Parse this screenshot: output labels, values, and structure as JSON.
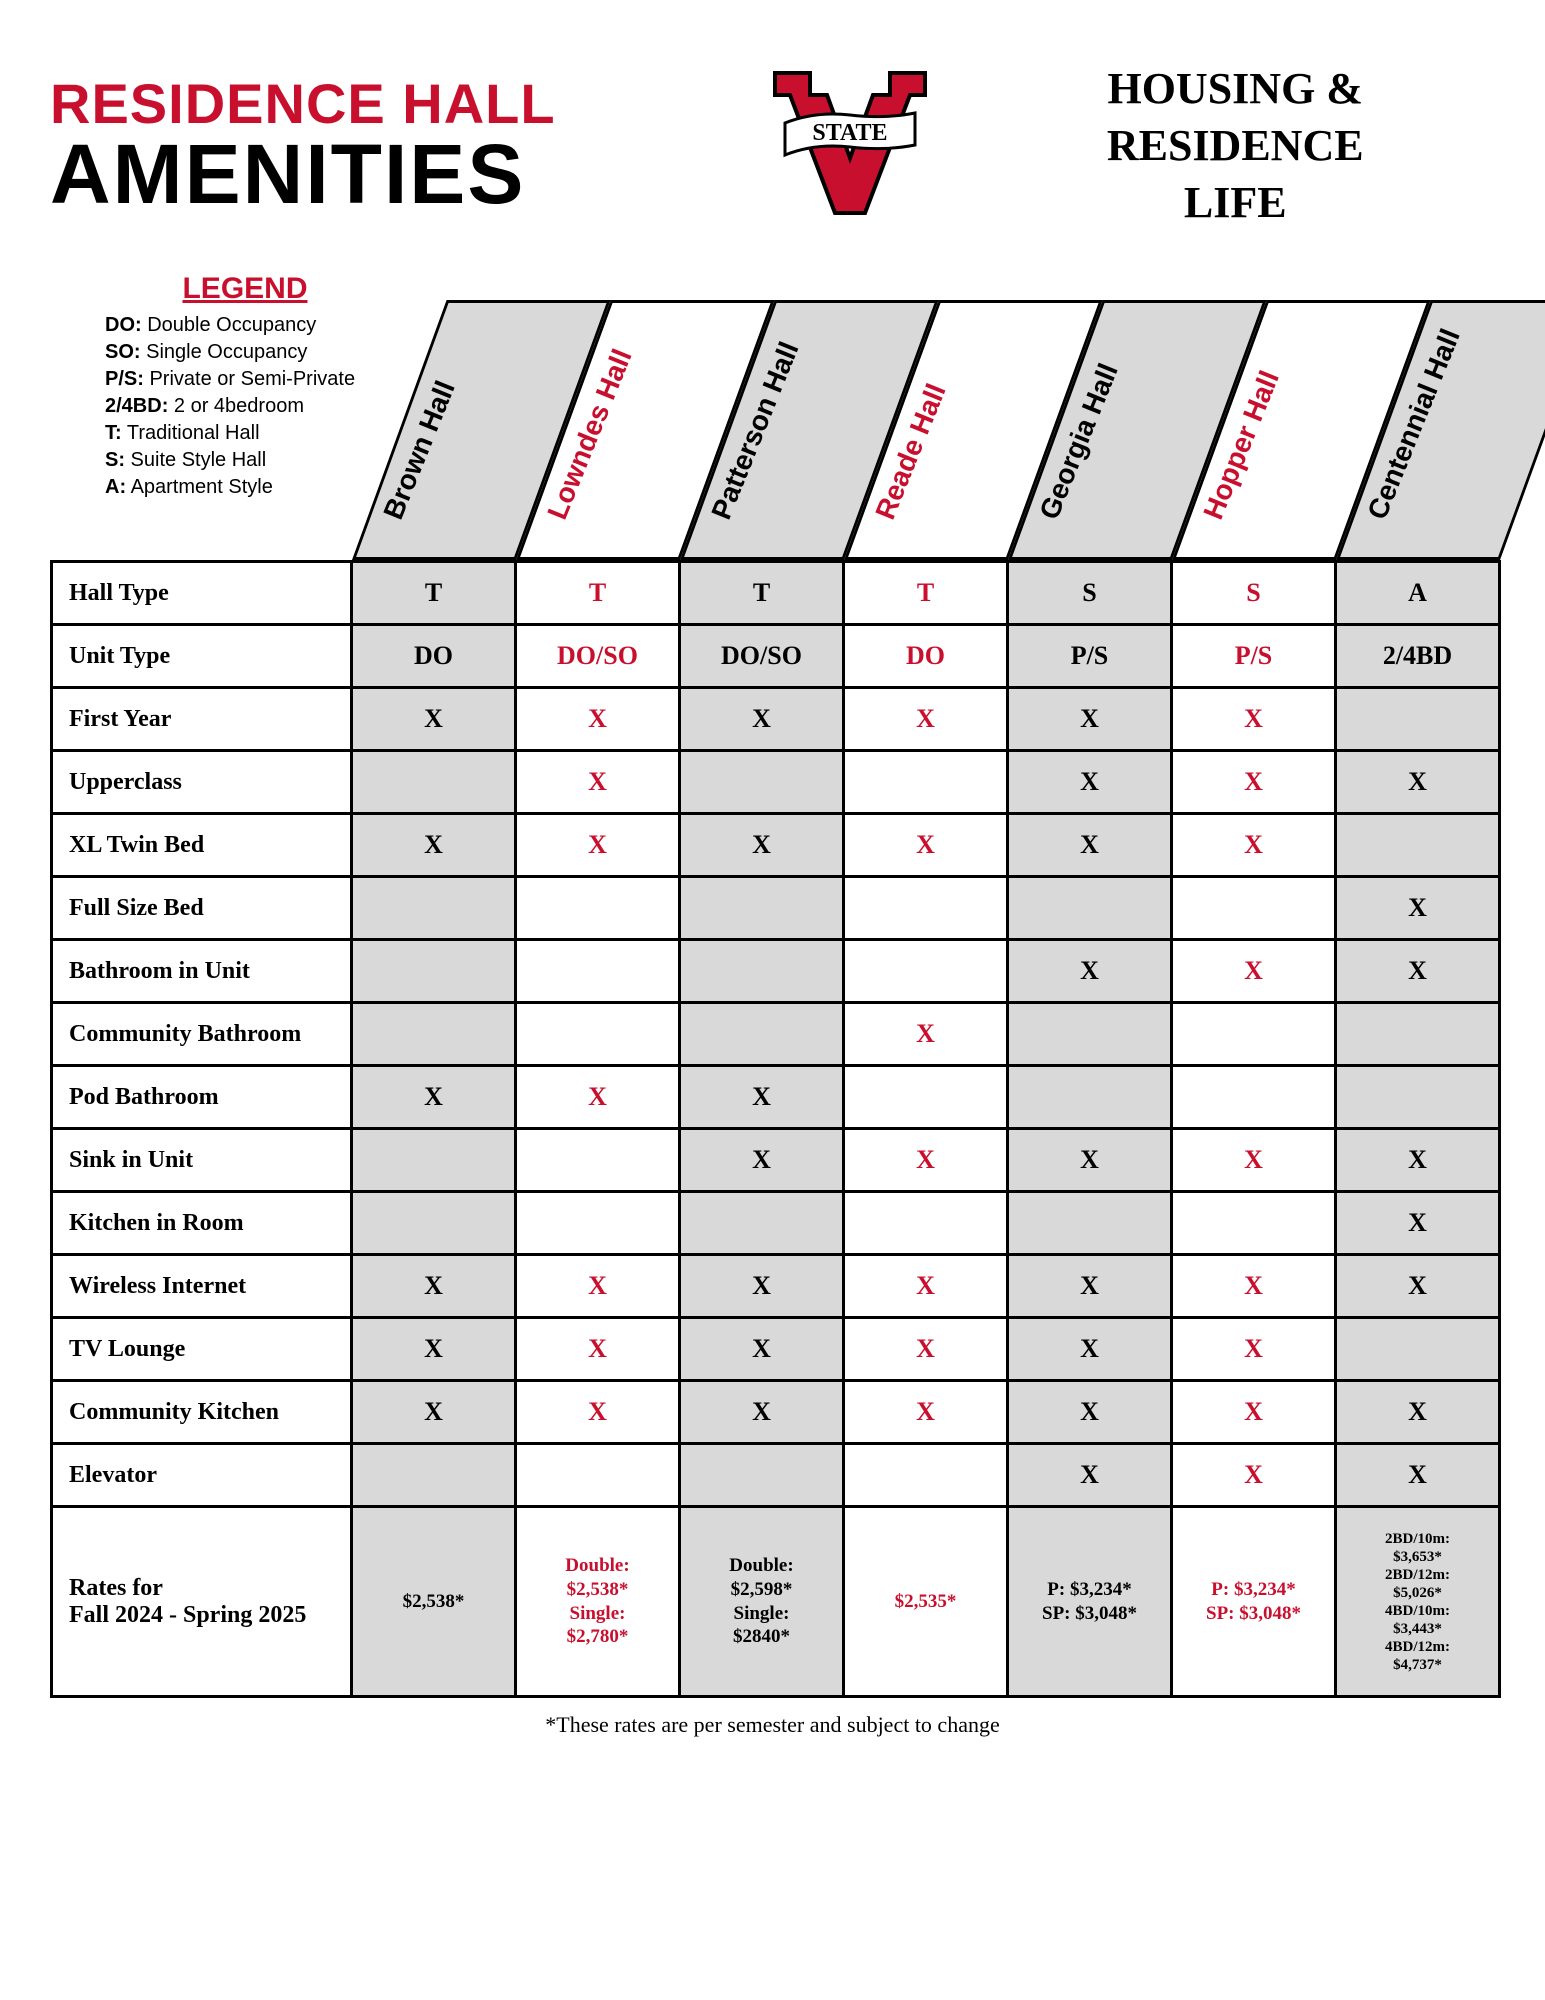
{
  "colors": {
    "red": "#c8102e",
    "black": "#000000",
    "grey": "#d9d9d9",
    "white": "#ffffff"
  },
  "header": {
    "title_line1": "RESIDENCE HALL",
    "title_line2": "AMENITIES",
    "dept_line1": "HOUSING &",
    "dept_line2": "RESIDENCE",
    "dept_line3": "LIFE",
    "logo_banner_text": "STATE"
  },
  "legend": {
    "title": "LEGEND",
    "items": [
      {
        "abbr": "DO:",
        "desc": "Double Occupancy"
      },
      {
        "abbr": "SO:",
        "desc": "Single Occupancy"
      },
      {
        "abbr": "P/S:",
        "desc": "Private or Semi-Private"
      },
      {
        "abbr": "2/4BD:",
        "desc": "2 or 4bedroom"
      },
      {
        "abbr": "T:",
        "desc": "Traditional Hall"
      },
      {
        "abbr": "S:",
        "desc": "Suite Style Hall"
      },
      {
        "abbr": "A:",
        "desc": "Apartment Style"
      }
    ]
  },
  "halls": [
    {
      "name": "Brown Hall",
      "color": "#000000"
    },
    {
      "name": "Lowndes Hall",
      "color": "#c8102e"
    },
    {
      "name": "Patterson Hall",
      "color": "#000000"
    },
    {
      "name": "Reade Hall",
      "color": "#c8102e"
    },
    {
      "name": "Georgia Hall",
      "color": "#000000"
    },
    {
      "name": "Hopper Hall",
      "color": "#c8102e"
    },
    {
      "name": "Centennial Hall",
      "color": "#000000"
    }
  ],
  "rows": [
    {
      "label": "Hall Type",
      "cells": [
        "T",
        "T",
        "T",
        "T",
        "S",
        "S",
        "A"
      ]
    },
    {
      "label": "Unit Type",
      "cells": [
        "DO",
        "DO/SO",
        "DO/SO",
        "DO",
        "P/S",
        "P/S",
        "2/4BD"
      ]
    },
    {
      "label": "First Year",
      "cells": [
        "X",
        "X",
        "X",
        "X",
        "X",
        "X",
        ""
      ]
    },
    {
      "label": "Upperclass",
      "cells": [
        "",
        "X",
        "",
        "",
        "X",
        "X",
        "X"
      ]
    },
    {
      "label": "XL Twin Bed",
      "cells": [
        "X",
        "X",
        "X",
        "X",
        "X",
        "X",
        ""
      ]
    },
    {
      "label": "Full Size Bed",
      "cells": [
        "",
        "",
        "",
        "",
        "",
        "",
        "X"
      ]
    },
    {
      "label": "Bathroom in Unit",
      "cells": [
        "",
        "",
        "",
        "",
        "X",
        "X",
        "X"
      ]
    },
    {
      "label": "Community Bathroom",
      "cells": [
        "",
        "",
        "",
        "X",
        "",
        "",
        ""
      ]
    },
    {
      "label": "Pod Bathroom",
      "cells": [
        "X",
        "X",
        "X",
        "",
        "",
        "",
        ""
      ]
    },
    {
      "label": "Sink in Unit",
      "cells": [
        "",
        "",
        "X",
        "X",
        "X",
        "X",
        "X"
      ]
    },
    {
      "label": "Kitchen in Room",
      "cells": [
        "",
        "",
        "",
        "",
        "",
        "",
        "X"
      ]
    },
    {
      "label": "Wireless Internet",
      "cells": [
        "X",
        "X",
        "X",
        "X",
        "X",
        "X",
        "X"
      ]
    },
    {
      "label": "TV Lounge",
      "cells": [
        "X",
        "X",
        "X",
        "X",
        "X",
        "X",
        ""
      ]
    },
    {
      "label": "Community Kitchen",
      "cells": [
        "X",
        "X",
        "X",
        "X",
        "X",
        "X",
        "X"
      ]
    },
    {
      "label": "Elevator",
      "cells": [
        "",
        "",
        "",
        "",
        "X",
        "X",
        "X"
      ]
    }
  ],
  "rates": {
    "label_line1": "Rates for",
    "label_line2": "Fall 2024 - Spring 2025",
    "cells": [
      {
        "lines": [
          "$2,538*"
        ],
        "size": "normal"
      },
      {
        "lines": [
          "Double:",
          "$2,538*",
          "Single:",
          "$2,780*"
        ],
        "size": "small-red"
      },
      {
        "lines": [
          "Double:",
          "$2,598*",
          "Single:",
          "$2840*"
        ],
        "size": "small-black"
      },
      {
        "lines": [
          "$2,535*"
        ],
        "size": "normal"
      },
      {
        "lines": [
          "P: $3,234*",
          "SP: $3,048*"
        ],
        "size": "small-black"
      },
      {
        "lines": [
          "P: $3,234*",
          "SP: $3,048*"
        ],
        "size": "small-red"
      },
      {
        "lines": [
          "2BD/10m:",
          "$3,653*",
          "2BD/12m:",
          "$5,026*",
          "4BD/10m:",
          "$3,443*",
          "4BD/12m:",
          "$4,737*"
        ],
        "size": "xsmall"
      }
    ]
  },
  "footnote": "*These rates are per semester and subject to change"
}
